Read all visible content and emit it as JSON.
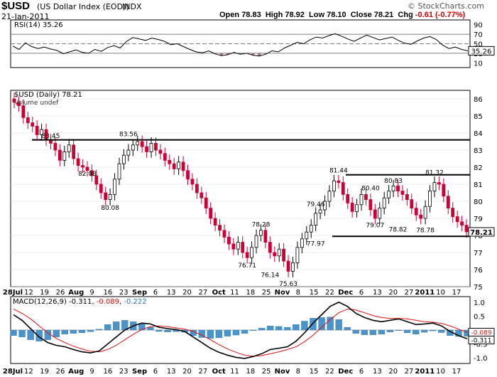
{
  "header": {
    "ticker": "$USD",
    "name": "(US Dollar Index (EOD))",
    "exchange": "INDX",
    "date": "21-Jan-2011",
    "brand": "© StockCharts.com",
    "quote": {
      "open_label": "Open",
      "open": "78.83",
      "high_label": "High",
      "high": "78.92",
      "low_label": "Low",
      "low": "78.10",
      "close_label": "Close",
      "close": "78.21",
      "chg_label": "Chg",
      "chg": "-0.61 (-0.77%)"
    }
  },
  "chart_data": [
    {
      "type": "line",
      "panel": "RSI",
      "legend": "RSI(14) 35.26",
      "ylim": [
        0,
        100
      ],
      "ticks": [
        "90",
        "70",
        "50",
        "30",
        "10"
      ],
      "reference_lines": [
        70,
        50,
        30
      ],
      "last_value": "35.26",
      "values": [
        45,
        38,
        52,
        44,
        40,
        43,
        39,
        36,
        29,
        33,
        37,
        32,
        30,
        38,
        34,
        42,
        46,
        41,
        55,
        63,
        60,
        57,
        62,
        59,
        55,
        48,
        50,
        44,
        38,
        33,
        31,
        35,
        29,
        25,
        27,
        32,
        28,
        30,
        26,
        24,
        28,
        35,
        33,
        41,
        47,
        53,
        50,
        58,
        64,
        62,
        67,
        71,
        66,
        60,
        55,
        62,
        68,
        63,
        58,
        61,
        64,
        57,
        51,
        49,
        56,
        62,
        65,
        59,
        47,
        40,
        43,
        38,
        35
      ]
    },
    {
      "type": "ohlc",
      "panel": "Price",
      "legend": "$USD (Daily) 78.21",
      "sublegend": "Volume undef",
      "ylim": [
        75,
        86.5
      ],
      "ticks": [
        "86",
        "85",
        "84",
        "83",
        "82",
        "81",
        "80",
        "79",
        "78",
        "77",
        "76",
        "75"
      ],
      "last_value": "78.21",
      "x_labels": [
        "28Jul",
        "12",
        "19",
        "26",
        "Aug",
        "9",
        "16",
        "23",
        "Sep",
        "6",
        "13",
        "20",
        "27",
        "Oct",
        "11",
        "18",
        "25",
        "Nov",
        "8",
        "15",
        "22",
        "Dec",
        "6",
        "13",
        "20",
        "27",
        "2011",
        "10",
        "17"
      ],
      "closes": [
        85.8,
        85.6,
        84.9,
        84.6,
        84.4,
        83.9,
        84.2,
        83.6,
        83.4,
        83.0,
        82.4,
        82.9,
        83.3,
        82.5,
        82.1,
        82.0,
        81.8,
        81.5,
        81.0,
        80.5,
        80.1,
        80.4,
        81.3,
        82.2,
        82.7,
        83.0,
        83.3,
        83.5,
        83.2,
        82.9,
        83.4,
        83.0,
        82.8,
        82.4,
        82.2,
        81.9,
        82.3,
        81.8,
        81.3,
        81.0,
        80.5,
        80.2,
        79.6,
        79.0,
        78.6,
        78.3,
        77.9,
        77.5,
        77.2,
        77.6,
        77.0,
        76.7,
        77.3,
        78.0,
        78.3,
        77.6,
        77.0,
        76.8,
        77.2,
        76.5,
        75.9,
        76.4,
        77.3,
        77.8,
        78.2,
        78.6,
        79.3,
        79.5,
        80.0,
        80.6,
        81.2,
        81.1,
        80.4,
        79.9,
        79.4,
        79.8,
        80.4,
        80.1,
        79.5,
        79.0,
        79.6,
        80.2,
        80.6,
        80.9,
        80.6,
        80.4,
        80.1,
        79.6,
        79.2,
        79.0,
        79.7,
        80.6,
        81.1,
        81.0,
        80.3,
        79.6,
        79.1,
        78.8,
        78.6,
        78.21
      ],
      "annotations": [
        {
          "label": "83.45",
          "value": 83.45
        },
        {
          "label": "83.56",
          "value": 83.56
        },
        {
          "label": "82.08",
          "value": 82.08
        },
        {
          "label": "80.08",
          "value": 80.08
        },
        {
          "label": "81.44",
          "value": 81.44
        },
        {
          "label": "80.40",
          "value": 80.4
        },
        {
          "label": "80.83",
          "value": 80.83
        },
        {
          "label": "81.32",
          "value": 81.32
        },
        {
          "label": "79.46",
          "value": 79.46
        },
        {
          "label": "78.28",
          "value": 78.28
        },
        {
          "label": "79.07",
          "value": 79.07
        },
        {
          "label": "78.82",
          "value": 78.82
        },
        {
          "label": "78.78",
          "value": 78.78
        },
        {
          "label": "77.97",
          "value": 77.97
        },
        {
          "label": "76.71",
          "value": 76.71
        },
        {
          "label": "76.14",
          "value": 76.14
        },
        {
          "label": "75.63",
          "value": 75.63
        }
      ],
      "horizontal_lines": [
        83.6,
        81.55,
        77.95
      ]
    },
    {
      "type": "line",
      "panel": "MACD",
      "legend_prefix": "MACD(12,26,9) ",
      "legend_macd": "-0.311",
      "legend_signal": "-0.089",
      "legend_hist": "-0.222",
      "ylim": [
        -1.2,
        1.2
      ],
      "ticks": [
        "1.0",
        "0.5",
        "0.0",
        "-0.5",
        "-1.0"
      ],
      "last_signal": "-0.089",
      "last_macd": "-0.311",
      "colors": {
        "macd": "#000000",
        "signal": "#e01010",
        "histogram": "#4a94cc"
      },
      "macd": [
        0.55,
        0.35,
        0.05,
        -0.25,
        -0.45,
        -0.55,
        -0.6,
        -0.7,
        -0.78,
        -0.82,
        -0.75,
        -0.5,
        -0.25,
        0.0,
        0.15,
        0.25,
        0.22,
        0.1,
        0.05,
        0.02,
        -0.05,
        -0.25,
        -0.45,
        -0.65,
        -0.8,
        -0.9,
        -0.98,
        -1.02,
        -0.95,
        -0.85,
        -0.7,
        -0.65,
        -0.6,
        -0.4,
        -0.1,
        0.25,
        0.55,
        0.85,
        1.0,
        0.85,
        0.6,
        0.45,
        0.35,
        0.3,
        0.35,
        0.4,
        0.3,
        0.2,
        0.22,
        0.25,
        0.15,
        -0.05,
        -0.2,
        -0.311
      ],
      "signal": [
        0.75,
        0.6,
        0.4,
        0.15,
        -0.1,
        -0.3,
        -0.45,
        -0.58,
        -0.68,
        -0.76,
        -0.78,
        -0.7,
        -0.55,
        -0.35,
        -0.15,
        0.02,
        0.12,
        0.15,
        0.12,
        0.08,
        0.03,
        -0.05,
        -0.18,
        -0.35,
        -0.52,
        -0.68,
        -0.8,
        -0.9,
        -0.94,
        -0.92,
        -0.85,
        -0.78,
        -0.7,
        -0.6,
        -0.42,
        -0.18,
        0.1,
        0.38,
        0.62,
        0.75,
        0.72,
        0.62,
        0.52,
        0.45,
        0.42,
        0.42,
        0.4,
        0.35,
        0.3,
        0.28,
        0.24,
        0.15,
        0.03,
        -0.089
      ]
    }
  ]
}
